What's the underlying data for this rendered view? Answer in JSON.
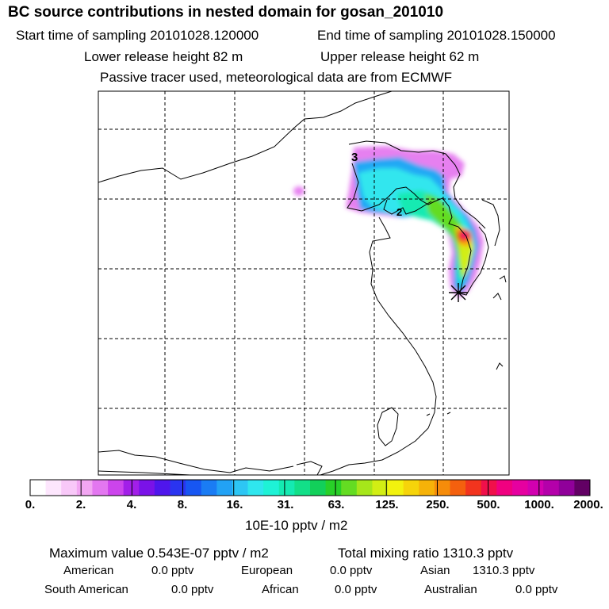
{
  "header": {
    "title": "BC  source contributions in nested domain for gosan_201010",
    "start_sampling": "Start time of sampling 20101028.120000",
    "end_sampling": "End time of sampling 20101028.150000",
    "lower_release": "Lower release height   82 m",
    "upper_release": "Upper release height   62 m",
    "tracer_note": "Passive tracer used, meteorological data are from ECMWF"
  },
  "map": {
    "contour_labels": [
      "3",
      "2"
    ],
    "receptor_marker": "star",
    "grid": true
  },
  "colorbar": {
    "tick_labels": [
      "0.",
      "2.",
      "4.",
      "8.",
      "16.",
      "31.",
      "63.",
      "125.",
      "250.",
      "500.",
      "1000.",
      "2000."
    ],
    "unit_label": "10E-10 pptv / m2",
    "colors": [
      "#ffffff",
      "#fde6fd",
      "#f8c8f8",
      "#f2a6f2",
      "#e377f0",
      "#cc44ec",
      "#a21fe8",
      "#7a12e8",
      "#4f16ec",
      "#2a34f0",
      "#1756f2",
      "#1a7cf4",
      "#22a2f5",
      "#2dc6f4",
      "#2fe6ee",
      "#1ef2d6",
      "#14eab2",
      "#12df88",
      "#12d05a",
      "#28d028",
      "#64dc22",
      "#a6e61a",
      "#d2ee14",
      "#f2f20e",
      "#f6d40a",
      "#f6b208",
      "#f68c0a",
      "#f4600e",
      "#f2341e",
      "#f0104a",
      "#f00080",
      "#e600a0",
      "#d200b0",
      "#b400aa",
      "#90009a",
      "#620064"
    ]
  },
  "stats": {
    "max_value": "Maximum value  0.543E-07 pptv / m2",
    "total_mixing": "Total mixing ratio     1310.3 pptv",
    "regions": [
      {
        "name": "American",
        "value": "0.0 pptv"
      },
      {
        "name": "European",
        "value": "0.0 pptv"
      },
      {
        "name": "Asian",
        "value": "1310.3 pptv"
      },
      {
        "name": "South American",
        "value": "0.0 pptv"
      },
      {
        "name": "African",
        "value": "0.0 pptv"
      },
      {
        "name": "Australian",
        "value": "0.0 pptv"
      }
    ]
  }
}
